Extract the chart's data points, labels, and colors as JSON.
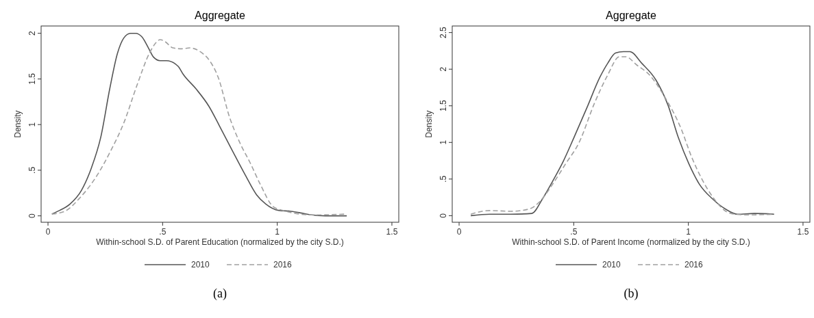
{
  "chart_data": [
    {
      "type": "line",
      "title": "Aggregate",
      "xlabel": "Within-school S.D. of Parent Education (normalized by the city S.D.)",
      "ylabel": "Density",
      "xlim": [
        -0.03,
        1.53
      ],
      "ylim": [
        -0.07,
        2.08
      ],
      "xticks": [
        0,
        {
          "value": 0.5,
          "label": ".5"
        },
        1,
        1.5
      ],
      "yticks": [
        0,
        {
          "value": 0.5,
          "label": ".5"
        },
        1,
        1.5,
        2
      ],
      "grid": false,
      "legend": "bottom",
      "annotations": [
        "(a)"
      ],
      "series": [
        {
          "name": "2010",
          "color": "#555555",
          "line_style": "solid",
          "x": [
            0.017,
            0.051,
            0.096,
            0.146,
            0.19,
            0.23,
            0.27,
            0.303,
            0.331,
            0.36,
            0.382,
            0.41,
            0.438,
            0.46,
            0.489,
            0.517,
            0.567,
            0.59,
            0.646,
            0.702,
            0.747,
            0.803,
            0.86,
            0.91,
            0.95,
            1.006,
            1.06,
            1.107,
            1.15,
            1.21,
            1.303
          ],
          "values": [
            0.02,
            0.06,
            0.13,
            0.28,
            0.53,
            0.86,
            1.4,
            1.78,
            1.95,
            2.0,
            2.0,
            1.96,
            1.84,
            1.74,
            1.7,
            1.7,
            1.64,
            1.55,
            1.39,
            1.2,
            0.99,
            0.72,
            0.45,
            0.23,
            0.13,
            0.06,
            0.05,
            0.03,
            0.01,
            0.0,
            0.0
          ]
        },
        {
          "name": "2016",
          "color": "#a0a0a0",
          "line_style": "dashed",
          "x": [
            0.017,
            0.073,
            0.14,
            0.208,
            0.275,
            0.331,
            0.388,
            0.444,
            0.472,
            0.489,
            0.51,
            0.545,
            0.584,
            0.618,
            0.669,
            0.702,
            0.742,
            0.792,
            0.837,
            0.882,
            0.927,
            0.983,
            1.039,
            1.096,
            1.163,
            1.303
          ],
          "values": [
            0.02,
            0.05,
            0.2,
            0.42,
            0.72,
            1.02,
            1.43,
            1.79,
            1.9,
            1.93,
            1.91,
            1.84,
            1.83,
            1.84,
            1.79,
            1.71,
            1.52,
            1.08,
            0.8,
            0.58,
            0.34,
            0.1,
            0.05,
            0.02,
            0.01,
            0.02
          ]
        }
      ]
    },
    {
      "type": "line",
      "title": "Aggregate",
      "xlabel": "Within-school S.D. of Parent Income (normalized by the city S.D.)",
      "ylabel": "Density",
      "xlim": [
        -0.03,
        1.53
      ],
      "ylim": [
        -0.09,
        2.59
      ],
      "xticks": [
        0,
        {
          "value": 0.5,
          "label": ".5"
        },
        1,
        1.5
      ],
      "yticks": [
        0,
        {
          "value": 0.5,
          "label": ".5"
        },
        1,
        1.5,
        2,
        2.5
      ],
      "grid": false,
      "legend": "bottom",
      "annotations": [
        "(b)"
      ],
      "series": [
        {
          "name": "2010",
          "color": "#555555",
          "line_style": "solid",
          "x": [
            0.051,
            0.134,
            0.225,
            0.317,
            0.362,
            0.408,
            0.454,
            0.5,
            0.557,
            0.614,
            0.648,
            0.682,
            0.717,
            0.745,
            0.797,
            0.859,
            0.911,
            0.957,
            1.002,
            1.048,
            1.105,
            1.162,
            1.214,
            1.288,
            1.374
          ],
          "values": [
            0.0,
            0.02,
            0.02,
            0.03,
            0.22,
            0.47,
            0.74,
            1.06,
            1.47,
            1.89,
            2.08,
            2.22,
            2.24,
            2.24,
            2.08,
            1.85,
            1.51,
            1.06,
            0.71,
            0.43,
            0.23,
            0.09,
            0.02,
            0.03,
            0.02
          ]
        },
        {
          "name": "2016",
          "color": "#a0a0a0",
          "line_style": "dashed",
          "x": [
            0.051,
            0.134,
            0.225,
            0.305,
            0.351,
            0.408,
            0.465,
            0.522,
            0.591,
            0.648,
            0.699,
            0.728,
            0.774,
            0.831,
            0.899,
            0.968,
            1.013,
            1.059,
            1.105,
            1.185,
            1.254,
            1.374
          ],
          "values": [
            0.02,
            0.07,
            0.06,
            0.09,
            0.19,
            0.43,
            0.71,
            0.99,
            1.54,
            1.92,
            2.17,
            2.17,
            2.06,
            1.92,
            1.61,
            1.19,
            0.81,
            0.5,
            0.26,
            0.03,
            0.01,
            0.02
          ]
        }
      ]
    }
  ]
}
